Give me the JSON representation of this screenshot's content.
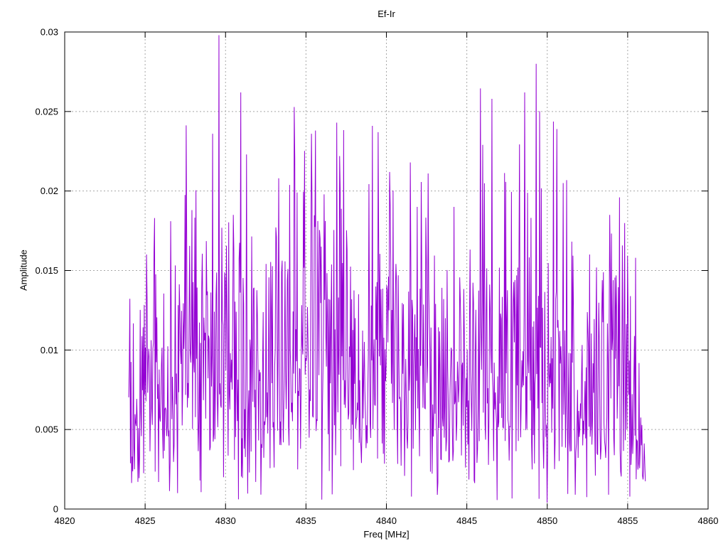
{
  "chart_data": {
    "type": "line",
    "title": "Ef-Ir",
    "xlabel": "Freq [MHz]",
    "ylabel": "Amplitude",
    "xlim": [
      4820,
      4860
    ],
    "ylim": [
      0,
      0.03
    ],
    "xticks": {
      "values": [
        4820,
        4825,
        4830,
        4835,
        4840,
        4845,
        4850,
        4855,
        4860
      ],
      "labels": [
        "4820",
        "4825",
        "4830",
        "4835",
        "4840",
        "4845",
        "4850",
        "4855",
        "4860"
      ]
    },
    "yticks": {
      "values": [
        0,
        0.005,
        0.01,
        0.015,
        0.02,
        0.025,
        0.03
      ],
      "labels": [
        "0",
        "0.005",
        "0.01",
        "0.015",
        "0.02",
        "0.025",
        "0.03"
      ]
    },
    "grid": true,
    "legend": "none",
    "series_name": "Ef-Ir",
    "series_color": "#9400d3",
    "grid_color": "#a8a8a8",
    "axis_color": "#000000",
    "background": "#ffffff",
    "signal": {
      "description": "Dense noise-like amplitude spectrum spanning ~4824-4856 MHz, typical amplitude 0.004-0.019, reconstructed from envelope + prominent peaks",
      "x_start": 4823.98,
      "x_end": 4856.1,
      "n_points": 900,
      "seed": 73,
      "floor": 0.0004,
      "cap_ratio": 1.32,
      "sigma_ratio": 0.385,
      "envelope": [
        [
          4823.98,
          0.011
        ],
        [
          4825,
          0.0155
        ],
        [
          4826,
          0.016
        ],
        [
          4827,
          0.018
        ],
        [
          4828,
          0.0185
        ],
        [
          4829,
          0.019
        ],
        [
          4830,
          0.0185
        ],
        [
          4831,
          0.0205
        ],
        [
          4832,
          0.016
        ],
        [
          4833,
          0.018
        ],
        [
          4834,
          0.0205
        ],
        [
          4835,
          0.021
        ],
        [
          4836,
          0.0205
        ],
        [
          4837,
          0.021
        ],
        [
          4838,
          0.0175
        ],
        [
          4839,
          0.018
        ],
        [
          4840,
          0.02
        ],
        [
          4841,
          0.0175
        ],
        [
          4842,
          0.019
        ],
        [
          4843,
          0.0175
        ],
        [
          4844,
          0.018
        ],
        [
          4845,
          0.0175
        ],
        [
          4846,
          0.0205
        ],
        [
          4847,
          0.019
        ],
        [
          4848,
          0.0205
        ],
        [
          4849,
          0.021
        ],
        [
          4850,
          0.0195
        ],
        [
          4851,
          0.019
        ],
        [
          4852,
          0.016
        ],
        [
          4853,
          0.017
        ],
        [
          4854,
          0.0185
        ],
        [
          4855,
          0.016
        ],
        [
          4855.6,
          0.0125
        ],
        [
          4856.0,
          0.006
        ],
        [
          4856.1,
          0.003
        ]
      ],
      "peaks": [
        [
          4825.6,
          0.0183
        ],
        [
          4826.6,
          0.0181
        ],
        [
          4827.9,
          0.0188
        ],
        [
          4829.2,
          0.0236
        ],
        [
          4829.6,
          0.0298
        ],
        [
          4830.5,
          0.0185
        ],
        [
          4830.95,
          0.0262
        ],
        [
          4831.3,
          0.0223
        ],
        [
          4833.3,
          0.0208
        ],
        [
          4834.3,
          0.0221
        ],
        [
          4835.35,
          0.0236
        ],
        [
          4835.6,
          0.0238
        ],
        [
          4836.9,
          0.0243
        ],
        [
          4837.1,
          0.0222
        ],
        [
          4839.5,
          0.0237
        ],
        [
          4840.2,
          0.0212
        ],
        [
          4841.9,
          0.019
        ],
        [
          4842.6,
          0.0211
        ],
        [
          4844.2,
          0.019
        ],
        [
          4846.0,
          0.0229
        ],
        [
          4846.55,
          0.0258
        ],
        [
          4848.6,
          0.0262
        ],
        [
          4849.3,
          0.028
        ],
        [
          4850.6,
          0.0239
        ],
        [
          4851.0,
          0.0205
        ],
        [
          4853.9,
          0.0185
        ],
        [
          4854.5,
          0.0196
        ],
        [
          4855.5,
          0.0158
        ]
      ],
      "dips": [
        [
          4850.0,
          0.0004
        ]
      ]
    }
  }
}
